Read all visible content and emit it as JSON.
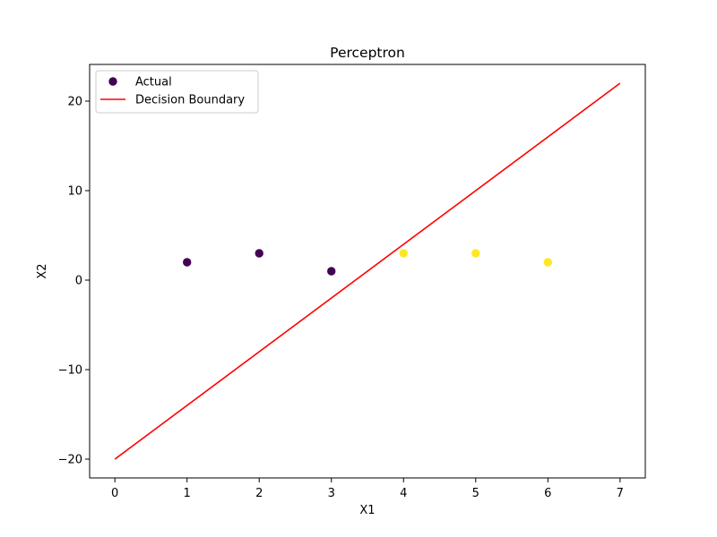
{
  "chart_data": {
    "type": "scatter",
    "title": "Perceptron",
    "xlabel": "X1",
    "ylabel": "X2",
    "xlim": [
      -0.35,
      7.35
    ],
    "ylim": [
      -22.1,
      24.1
    ],
    "xticks": [
      0,
      1,
      2,
      3,
      4,
      5,
      6,
      7
    ],
    "yticks": [
      -20,
      -10,
      0,
      10,
      20
    ],
    "ytick_labels": [
      "−20",
      "−10",
      "0",
      "10",
      "20"
    ],
    "grid": false,
    "legend_position": "upper-left",
    "series": [
      {
        "name": "Actual",
        "kind": "scatter",
        "points": [
          {
            "x": 1,
            "y": 2,
            "class": 0
          },
          {
            "x": 2,
            "y": 3,
            "class": 0
          },
          {
            "x": 3,
            "y": 1,
            "class": 0
          },
          {
            "x": 4,
            "y": 3,
            "class": 1
          },
          {
            "x": 5,
            "y": 3,
            "class": 1
          },
          {
            "x": 6,
            "y": 2,
            "class": 1
          }
        ],
        "class_colors": {
          "0": "#440154",
          "1": "#fde725"
        }
      },
      {
        "name": "Decision Boundary",
        "kind": "line",
        "color": "#ff0000",
        "points": [
          {
            "x": 0,
            "y": -20
          },
          {
            "x": 7,
            "y": 22
          }
        ]
      }
    ]
  }
}
